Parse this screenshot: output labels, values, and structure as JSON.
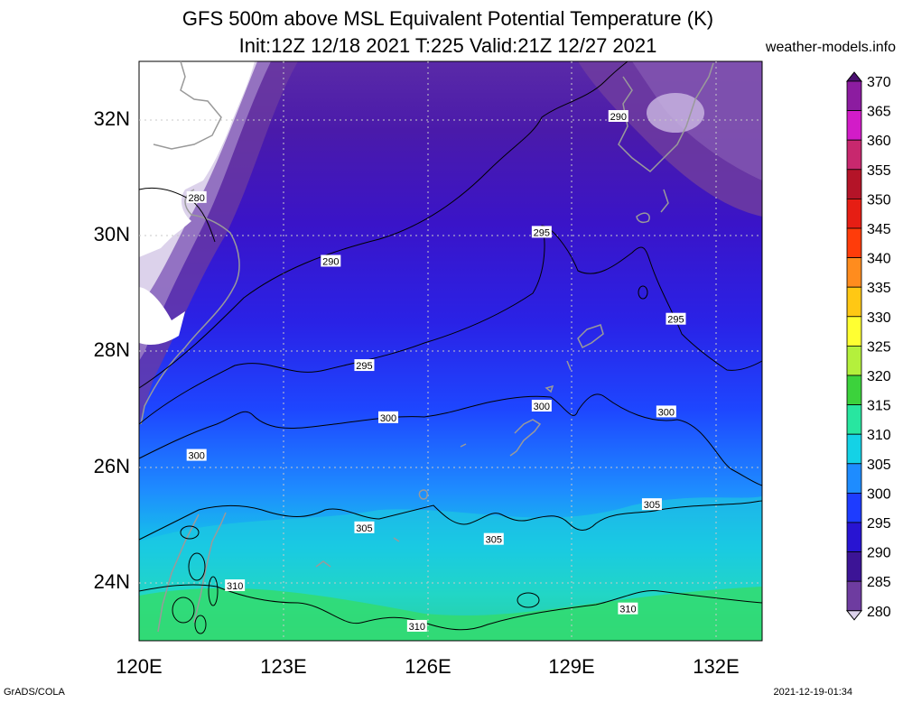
{
  "title_line1": "GFS 500m above MSL Equivalent Potential Temperature (K)",
  "title_line2": "Init:12Z 12/18 2021 T:225 Valid:21Z 12/27 2021",
  "site": "weather-models.info",
  "footer_left": "GrADS/COLA",
  "footer_right": "2021-12-19-01:34",
  "x_ticks": [
    "120E",
    "123E",
    "126E",
    "129E",
    "132E"
  ],
  "y_ticks": [
    "32N",
    "30N",
    "28N",
    "26N",
    "24N"
  ],
  "colorbar": {
    "labels": [
      "370",
      "365",
      "360",
      "355",
      "350",
      "345",
      "340",
      "335",
      "330",
      "325",
      "320",
      "315",
      "310",
      "305",
      "300",
      "295",
      "290",
      "285",
      "280"
    ],
    "colors": [
      "#4b1070",
      "#8c1ca0",
      "#d21cc8",
      "#c8286e",
      "#b41428",
      "#e61e14",
      "#ff3c0a",
      "#ff8c1e",
      "#ffc814",
      "#ffff32",
      "#b4f03c",
      "#3cd23c",
      "#28e6a0",
      "#14d2e6",
      "#1e8cff",
      "#1e3cff",
      "#2814d2",
      "#3c1496",
      "#6e3ca0",
      "#a082c8",
      "#dcd2eb"
    ]
  },
  "contour_labels": [
    {
      "text": "280",
      "lon": 121.2,
      "lat": 30.65
    },
    {
      "text": "290",
      "lon": 130.0,
      "lat": 32.05
    },
    {
      "text": "290",
      "lon": 124.0,
      "lat": 29.55
    },
    {
      "text": "295",
      "lon": 128.4,
      "lat": 30.05
    },
    {
      "text": "295",
      "lon": 131.2,
      "lat": 28.55
    },
    {
      "text": "295",
      "lon": 124.7,
      "lat": 27.75
    },
    {
      "text": "300",
      "lon": 125.2,
      "lat": 26.85
    },
    {
      "text": "300",
      "lon": 128.4,
      "lat": 27.05
    },
    {
      "text": "300",
      "lon": 131.0,
      "lat": 26.95
    },
    {
      "text": "300",
      "lon": 121.2,
      "lat": 26.2
    },
    {
      "text": "305",
      "lon": 124.7,
      "lat": 24.95
    },
    {
      "text": "305",
      "lon": 127.4,
      "lat": 24.75
    },
    {
      "text": "305",
      "lon": 130.7,
      "lat": 25.35
    },
    {
      "text": "310",
      "lon": 122.0,
      "lat": 23.95
    },
    {
      "text": "310",
      "lon": 125.8,
      "lat": 23.25
    },
    {
      "text": "310",
      "lon": 130.2,
      "lat": 23.55
    }
  ]
}
